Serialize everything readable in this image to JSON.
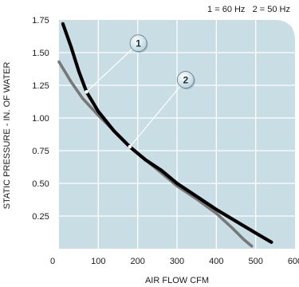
{
  "chart_data": {
    "type": "line",
    "title": "",
    "xlabel": "AIR FLOW CFM",
    "ylabel": "STATIC PRESSURE - IN. OF WATER",
    "xlim": [
      0,
      600
    ],
    "ylim": [
      0,
      1.75
    ],
    "x_ticks": [
      "0",
      "100",
      "200",
      "300",
      "400",
      "500",
      "600"
    ],
    "y_ticks": [
      "0.25",
      "0.50",
      "0.75",
      "1.00",
      "1.25",
      "1.50",
      "1.75"
    ],
    "grid": true,
    "legend_text": "1 = 60 Hz   2 = 50 Hz",
    "colors": {
      "plot_background": "#c9dde4",
      "grid": "#ffffff",
      "series_1": "#000000",
      "series_2": "#777777",
      "callout_fill": "#b9d3df"
    },
    "series": [
      {
        "name": "1 = 60 Hz",
        "callout": "1",
        "points": [
          [
            10,
            1.72
          ],
          [
            30,
            1.55
          ],
          [
            50,
            1.36
          ],
          [
            70,
            1.2
          ],
          [
            100,
            1.05
          ],
          [
            140,
            0.9
          ],
          [
            180,
            0.78
          ],
          [
            220,
            0.68
          ],
          [
            260,
            0.6
          ],
          [
            300,
            0.5
          ],
          [
            350,
            0.4
          ],
          [
            400,
            0.3
          ],
          [
            450,
            0.21
          ],
          [
            500,
            0.12
          ],
          [
            540,
            0.05
          ]
        ],
        "callout_anchor": [
          70,
          1.2
        ]
      },
      {
        "name": "2 = 50 Hz",
        "callout": "2",
        "points": [
          [
            0,
            1.43
          ],
          [
            30,
            1.28
          ],
          [
            60,
            1.15
          ],
          [
            100,
            1.02
          ],
          [
            140,
            0.9
          ],
          [
            180,
            0.78
          ],
          [
            220,
            0.68
          ],
          [
            260,
            0.58
          ],
          [
            300,
            0.48
          ],
          [
            350,
            0.38
          ],
          [
            400,
            0.27
          ],
          [
            440,
            0.16
          ],
          [
            470,
            0.07
          ],
          [
            490,
            0.02
          ]
        ],
        "callout_anchor": [
          180,
          0.78
        ]
      }
    ]
  }
}
